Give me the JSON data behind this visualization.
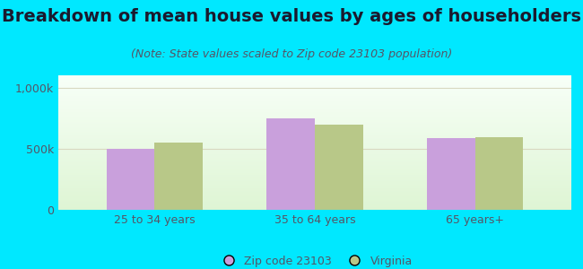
{
  "title": "Breakdown of mean house values by ages of householders",
  "subtitle": "(Note: State values scaled to Zip code 23103 population)",
  "categories": [
    "25 to 34 years",
    "35 to 64 years",
    "65 years+"
  ],
  "zip_values": [
    500000,
    750000,
    590000
  ],
  "va_values": [
    550000,
    700000,
    595000
  ],
  "zip_color": "#c9a0dc",
  "va_color": "#b8c888",
  "ylim": [
    0,
    1100000
  ],
  "yticks": [
    0,
    500000,
    1000000
  ],
  "ytick_labels": [
    "0",
    "500k",
    "1,000k"
  ],
  "background_outer": "#00e8ff",
  "grid_color": "#d8d8c0",
  "legend_zip_label": "Zip code 23103",
  "legend_va_label": "Virginia",
  "title_fontsize": 14,
  "subtitle_fontsize": 9,
  "bar_width": 0.3,
  "title_color": "#1a1a2e",
  "subtitle_color": "#555566",
  "tick_color": "#555566"
}
